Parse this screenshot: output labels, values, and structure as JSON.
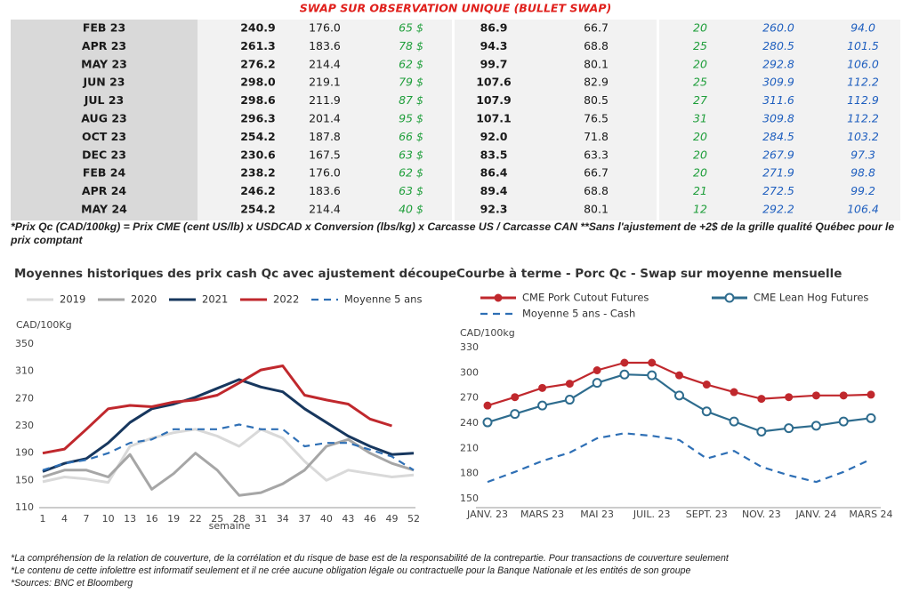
{
  "header": {
    "title": "SWAP SUR OBSERVATION UNIQUE (BULLET SWAP)"
  },
  "table": {
    "rows": [
      [
        "FEB 23",
        "240.9",
        "176.0",
        "65 $",
        "86.9",
        "66.7",
        "20",
        "260.0",
        "94.0"
      ],
      [
        "APR 23",
        "261.3",
        "183.6",
        "78 $",
        "94.3",
        "68.8",
        "25",
        "280.5",
        "101.5"
      ],
      [
        "MAY 23",
        "276.2",
        "214.4",
        "62 $",
        "99.7",
        "80.1",
        "20",
        "292.8",
        "106.0"
      ],
      [
        "JUN 23",
        "298.0",
        "219.1",
        "79 $",
        "107.6",
        "82.9",
        "25",
        "309.9",
        "112.2"
      ],
      [
        "JUL 23",
        "298.6",
        "211.9",
        "87 $",
        "107.9",
        "80.5",
        "27",
        "311.6",
        "112.9"
      ],
      [
        "AUG 23",
        "296.3",
        "201.4",
        "95 $",
        "107.1",
        "76.5",
        "31",
        "309.8",
        "112.2"
      ],
      [
        "OCT 23",
        "254.2",
        "187.8",
        "66 $",
        "92.0",
        "71.8",
        "20",
        "284.5",
        "103.2"
      ],
      [
        "DEC 23",
        "230.6",
        "167.5",
        "63 $",
        "83.5",
        "63.3",
        "20",
        "267.9",
        "97.3"
      ],
      [
        "FEB 24",
        "238.2",
        "176.0",
        "62 $",
        "86.4",
        "66.7",
        "20",
        "271.9",
        "98.8"
      ],
      [
        "APR 24",
        "246.2",
        "183.6",
        "63 $",
        "89.4",
        "68.8",
        "21",
        "272.5",
        "99.2"
      ],
      [
        "MAY 24",
        "254.2",
        "214.4",
        "40 $",
        "92.3",
        "80.1",
        "12",
        "292.2",
        "106.4"
      ]
    ]
  },
  "note": "*Prix Qc (CAD/100kg) = Prix CME (cent US/lb) x USDCAD x Conversion (lbs/kg) x Carcasse US / Carcasse CAN **Sans l'ajustement de +2$ de la grille qualité Québec pour le prix comptant",
  "chart_data": [
    {
      "type": "line",
      "title": "Moyennes historiques des prix cash Qc avec ajustement découpe",
      "y_label": "CAD/100Kg",
      "x_label": "semaine",
      "x": [
        1,
        4,
        7,
        10,
        13,
        16,
        19,
        22,
        25,
        28,
        31,
        34,
        37,
        40,
        43,
        46,
        49,
        52
      ],
      "xlim": [
        1,
        52
      ],
      "xticks": [
        1,
        4,
        7,
        10,
        13,
        16,
        19,
        22,
        25,
        28,
        31,
        34,
        37,
        40,
        43,
        46,
        49,
        52
      ],
      "ylim": [
        110,
        350
      ],
      "yticks": [
        110,
        150,
        190,
        230,
        270,
        310,
        350
      ],
      "series": [
        {
          "name": "2019",
          "color": "#d9d9d9",
          "values": [
            148,
            155,
            152,
            147,
            200,
            212,
            220,
            225,
            215,
            200,
            225,
            212,
            178,
            150,
            165,
            160,
            155,
            158
          ]
        },
        {
          "name": "2020",
          "color": "#a6a6a6",
          "values": [
            155,
            165,
            165,
            155,
            188,
            137,
            160,
            190,
            165,
            128,
            132,
            145,
            165,
            200,
            210,
            190,
            175,
            165
          ]
        },
        {
          "name": "2021",
          "color": "#17375e",
          "values": [
            163,
            175,
            182,
            205,
            235,
            255,
            262,
            272,
            285,
            298,
            287,
            280,
            255,
            235,
            215,
            200,
            188,
            190
          ]
        },
        {
          "name": "2022",
          "color": "#c0282d",
          "values": [
            190,
            196,
            225,
            255,
            260,
            258,
            265,
            268,
            275,
            293,
            312,
            318,
            275,
            268,
            262,
            240,
            230,
            null
          ]
        },
        {
          "name": "Moyenne 5 ans",
          "color": "#2e6fb5",
          "line_style": "dashed",
          "values": [
            165,
            175,
            180,
            190,
            205,
            210,
            225,
            225,
            225,
            232,
            225,
            225,
            200,
            205,
            205,
            195,
            185,
            165
          ]
        }
      ]
    },
    {
      "type": "line",
      "title": "Courbe à terme - Porc Qc - Swap sur moyenne mensuelle",
      "y_label": "CAD/100kg",
      "categories": [
        "JANV. 23",
        null,
        "MARS 23",
        null,
        "MAI 23",
        null,
        "JUIL. 23",
        null,
        "SEPT. 23",
        null,
        "NOV. 23",
        null,
        "JANV. 24",
        null,
        "MARS 24"
      ],
      "ylim": [
        150,
        330
      ],
      "yticks": [
        150,
        180,
        210,
        240,
        270,
        300,
        330
      ],
      "series": [
        {
          "name": "CME Pork Cutout Futures",
          "color": "#c0282d",
          "marker": "filled",
          "values": [
            261,
            271,
            282,
            287,
            303,
            312,
            312,
            297,
            286,
            277,
            269,
            271,
            273,
            273,
            274
          ]
        },
        {
          "name": "CME Lean Hog Futures",
          "color": "#2e6c8e",
          "marker": "open",
          "values": [
            241,
            251,
            261,
            268,
            288,
            298,
            297,
            273,
            254,
            242,
            230,
            234,
            237,
            242,
            246
          ]
        },
        {
          "name": "Moyenne 5 ans - Cash",
          "color": "#2e6fb5",
          "line_style": "dashed",
          "values": [
            170,
            182,
            195,
            205,
            222,
            228,
            225,
            220,
            198,
            207,
            188,
            178,
            170,
            182,
            197
          ]
        }
      ]
    }
  ],
  "footer": {
    "lines": [
      "*La compréhension de la relation de couverture, de la corrélation et du risque de base est de la responsabilité de la contrepartie. Pour transactions de couverture seulement",
      "*Le contenu de cette infolettre est informatif seulement et il ne crée aucune obligation légale ou contractuelle pour la Banque Nationale et les entités de son groupe",
      "*Sources: BNC et Bloomberg"
    ]
  }
}
